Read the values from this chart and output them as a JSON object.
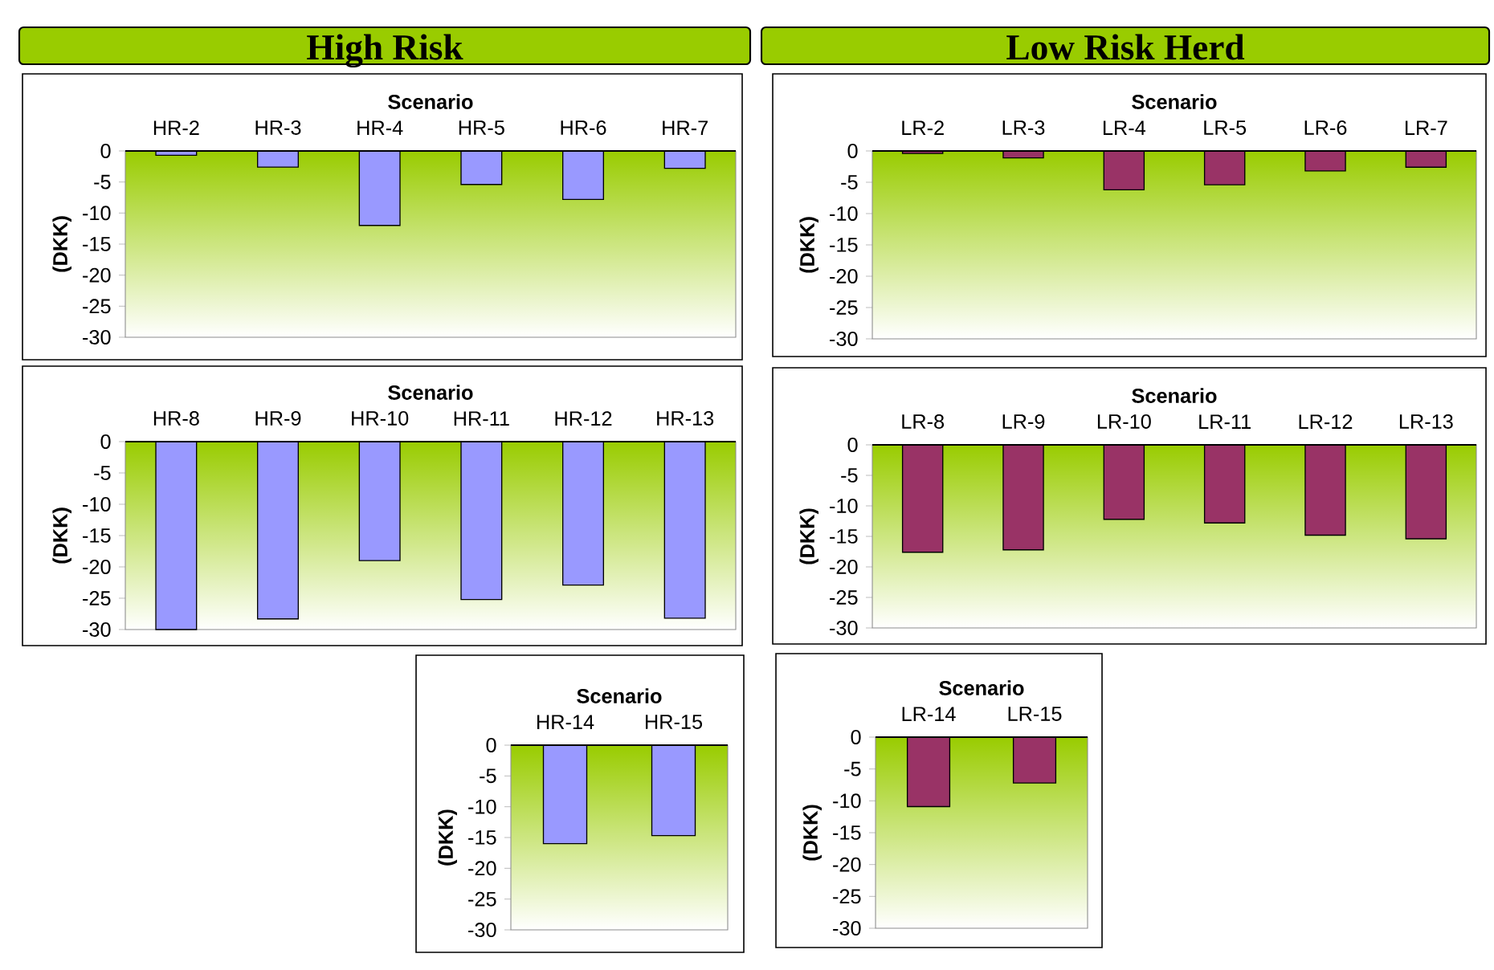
{
  "chart_data": [
    {
      "type": "bar",
      "title": "High Risk",
      "xlabel": "Scenario",
      "ylabel": "(DKK)",
      "categories": [
        "HR-2",
        "HR-3",
        "HR-4",
        "HR-5",
        "HR-6",
        "HR-7"
      ],
      "values": [
        -0.7,
        -2.6,
        -12,
        -5.4,
        -7.8,
        -2.8
      ],
      "color": "#9999ff",
      "ylim": [
        -30,
        0
      ],
      "yticks": [
        -30,
        -25,
        -20,
        -15,
        -10,
        -5,
        0
      ]
    },
    {
      "type": "bar",
      "title": "Low Risk Herd",
      "xlabel": "Scenario",
      "ylabel": "(DKK)",
      "categories": [
        "LR-2",
        "LR-3",
        "LR-4",
        "LR-5",
        "LR-6",
        "LR-7"
      ],
      "values": [
        -0.4,
        -1.1,
        -6.2,
        -5.4,
        -3.2,
        -2.6
      ],
      "color": "#993366",
      "ylim": [
        -30,
        0
      ],
      "yticks": [
        -30,
        -25,
        -20,
        -15,
        -10,
        -5,
        0
      ]
    },
    {
      "type": "bar",
      "xlabel": "Scenario",
      "ylabel": "(DKK)",
      "categories": [
        "HR-8",
        "HR-9",
        "HR-10",
        "HR-11",
        "HR-12",
        "HR-13"
      ],
      "values": [
        -30,
        -28.3,
        -19,
        -25.2,
        -22.9,
        -28.2
      ],
      "color": "#9999ff",
      "ylim": [
        -30,
        0
      ],
      "yticks": [
        -30,
        -25,
        -20,
        -15,
        -10,
        -5,
        0
      ]
    },
    {
      "type": "bar",
      "xlabel": "Scenario",
      "ylabel": "(DKK)",
      "categories": [
        "LR-8",
        "LR-9",
        "LR-10",
        "LR-11",
        "LR-12",
        "LR-13"
      ],
      "values": [
        -17.6,
        -17.2,
        -12.2,
        -12.8,
        -14.8,
        -15.4
      ],
      "color": "#993366",
      "ylim": [
        -30,
        0
      ],
      "yticks": [
        -30,
        -25,
        -20,
        -15,
        -10,
        -5,
        0
      ]
    },
    {
      "type": "bar",
      "xlabel": "Scenario",
      "ylabel": "(DKK)",
      "categories": [
        "HR-14",
        "HR-15"
      ],
      "values": [
        -16,
        -14.7
      ],
      "color": "#9999ff",
      "ylim": [
        -30,
        0
      ],
      "yticks": [
        -30,
        -25,
        -20,
        -15,
        -10,
        -5,
        0
      ]
    },
    {
      "type": "bar",
      "xlabel": "Scenario",
      "ylabel": "(DKK)",
      "categories": [
        "LR-14",
        "LR-15"
      ],
      "values": [
        -10.9,
        -7.2
      ],
      "color": "#993366",
      "ylim": [
        -30,
        0
      ],
      "yticks": [
        -30,
        -25,
        -20,
        -15,
        -10,
        -5,
        0
      ]
    }
  ]
}
